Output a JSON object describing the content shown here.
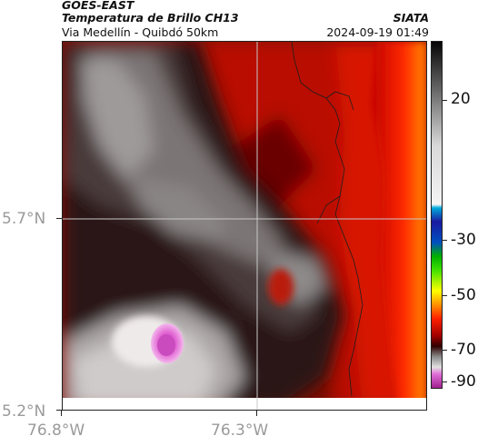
{
  "header": {
    "satellite": "GOES-EAST",
    "product": "Temperatura de Brillo CH13",
    "route": "Via Medellín - Quibdó 50km",
    "agency": "SIATA",
    "timestamp": "2024-09-19 01:49"
  },
  "map": {
    "lat_labels": [
      "5.7°N",
      "5.2°N"
    ],
    "lon_labels": [
      "76.8°W",
      "76.3°W"
    ],
    "gridlines": true
  },
  "colorbar": {
    "tick_labels": [
      "20",
      "-30",
      "-50",
      "-70",
      "-90"
    ],
    "colors": {
      "warm_red": "#b30000",
      "bright_red": "#ff2000",
      "orange": "#ff8000",
      "dark": "#160303",
      "gray": "#7a7a7a",
      "light_gray": "#d8d8d8",
      "magenta": "#d94bc6"
    }
  }
}
